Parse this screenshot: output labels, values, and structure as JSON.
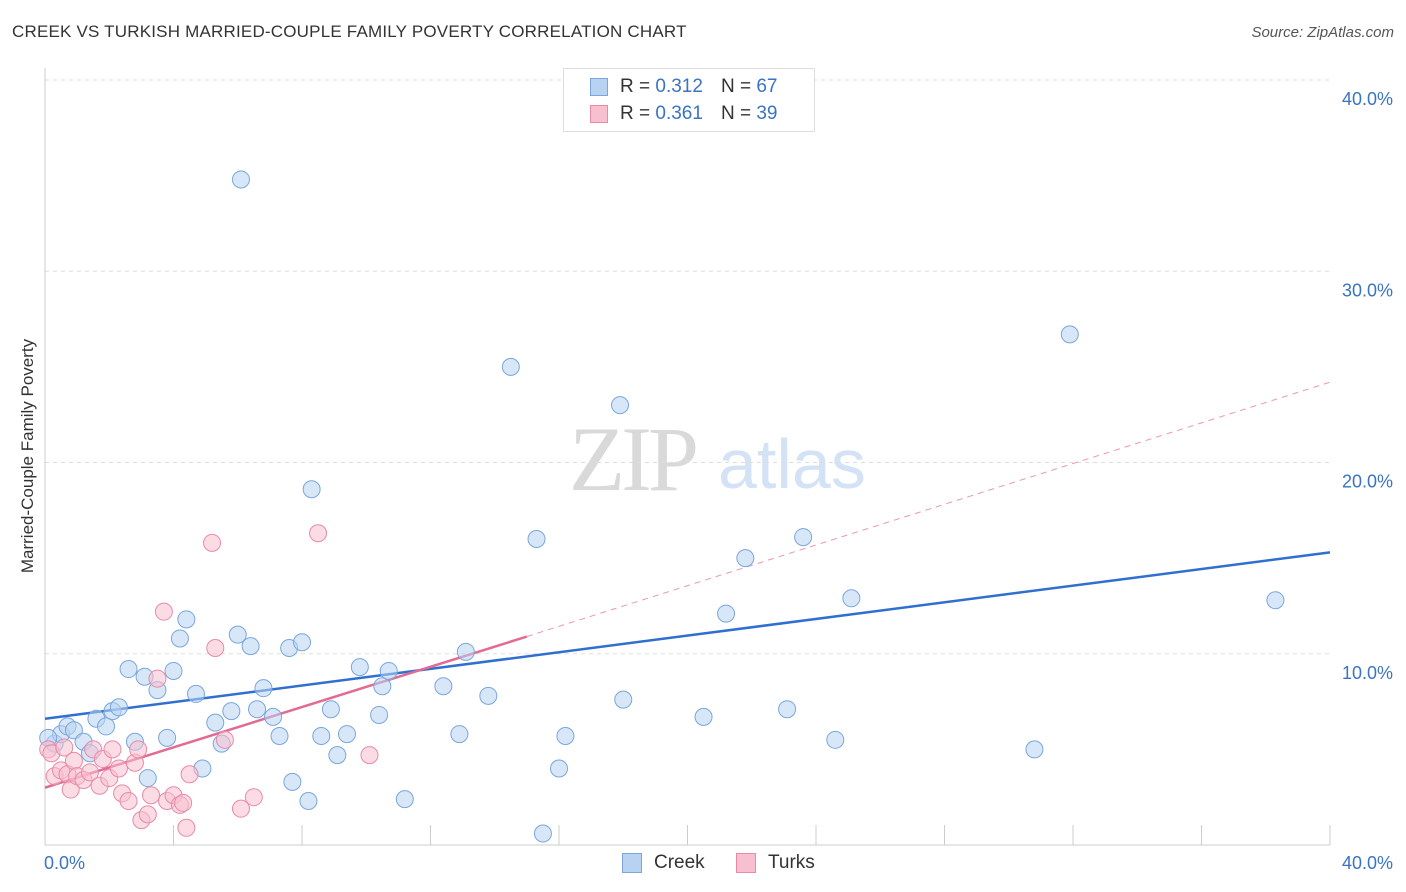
{
  "title": "CREEK VS TURKISH MARRIED-COUPLE FAMILY POVERTY CORRELATION CHART",
  "source": "Source: ZipAtlas.com",
  "watermark": {
    "zip": "ZIP",
    "atlas": "atlas"
  },
  "legend_top": {
    "creek": {
      "r_label": "R =",
      "r_value": "0.312",
      "n_label": "N =",
      "n_value": "67"
    },
    "turks": {
      "r_label": "R =",
      "r_value": "0.361",
      "n_label": "N =",
      "n_value": "39"
    }
  },
  "legend_bottom": {
    "creek": "Creek",
    "turks": "Turks"
  },
  "colors": {
    "creek_fill": "#b8d3f2",
    "creek_stroke": "#7aa6dc",
    "creek_line": "#2f6fcf",
    "turks_fill": "#f7bfd0",
    "turks_stroke": "#e88aa8",
    "turks_line": "#e26a93",
    "grid": "#dddddd",
    "axis_text": "#3a73c4"
  },
  "chart_data": {
    "type": "scatter",
    "title": "CREEK VS TURKISH MARRIED-COUPLE FAMILY POVERTY CORRELATION CHART",
    "xlabel": "",
    "ylabel": "Married-Couple Family Poverty",
    "xlim": [
      0,
      40
    ],
    "ylim": [
      0,
      40
    ],
    "x_tick_labels": {
      "min": "0.0%",
      "max": "40.0%"
    },
    "y_tick_labels": [
      "10.0%",
      "20.0%",
      "30.0%",
      "40.0%"
    ],
    "y_tick_values": [
      10,
      20,
      30,
      40
    ],
    "series": [
      {
        "name": "Creek",
        "points": [
          [
            0.3,
            5.3
          ],
          [
            0.5,
            5.8
          ],
          [
            0.7,
            6.2
          ],
          [
            0.9,
            6.0
          ],
          [
            1.2,
            5.4
          ],
          [
            1.4,
            4.8
          ],
          [
            1.6,
            6.6
          ],
          [
            1.9,
            6.2
          ],
          [
            2.1,
            7.0
          ],
          [
            2.3,
            7.2
          ],
          [
            2.6,
            9.2
          ],
          [
            2.8,
            5.4
          ],
          [
            3.1,
            8.8
          ],
          [
            3.2,
            3.5
          ],
          [
            3.5,
            8.1
          ],
          [
            3.8,
            5.6
          ],
          [
            4.0,
            9.1
          ],
          [
            4.2,
            10.8
          ],
          [
            4.4,
            11.8
          ],
          [
            4.7,
            7.9
          ],
          [
            4.9,
            4.0
          ],
          [
            5.3,
            6.4
          ],
          [
            5.5,
            5.3
          ],
          [
            5.8,
            7.0
          ],
          [
            6.0,
            11.0
          ],
          [
            6.1,
            34.8
          ],
          [
            6.4,
            10.4
          ],
          [
            6.6,
            7.1
          ],
          [
            6.8,
            8.2
          ],
          [
            7.1,
            6.7
          ],
          [
            7.3,
            5.7
          ],
          [
            7.6,
            10.3
          ],
          [
            7.7,
            3.3
          ],
          [
            8.0,
            10.6
          ],
          [
            8.2,
            2.3
          ],
          [
            8.3,
            18.6
          ],
          [
            8.6,
            5.7
          ],
          [
            8.9,
            7.1
          ],
          [
            9.1,
            4.7
          ],
          [
            9.4,
            5.8
          ],
          [
            9.8,
            9.3
          ],
          [
            10.4,
            6.8
          ],
          [
            10.5,
            8.3
          ],
          [
            10.7,
            9.1
          ],
          [
            11.2,
            2.4
          ],
          [
            12.4,
            8.3
          ],
          [
            12.9,
            5.8
          ],
          [
            13.1,
            10.1
          ],
          [
            13.8,
            7.8
          ],
          [
            14.5,
            25.0
          ],
          [
            15.3,
            16.0
          ],
          [
            15.5,
            0.6
          ],
          [
            16.0,
            4.0
          ],
          [
            16.2,
            5.7
          ],
          [
            17.9,
            23.0
          ],
          [
            18.0,
            7.6
          ],
          [
            20.5,
            6.7
          ],
          [
            21.2,
            12.1
          ],
          [
            21.8,
            15.0
          ],
          [
            23.1,
            7.1
          ],
          [
            23.6,
            16.1
          ],
          [
            24.6,
            5.5
          ],
          [
            25.1,
            12.9
          ],
          [
            30.8,
            5.0
          ],
          [
            31.9,
            26.7
          ],
          [
            38.3,
            12.8
          ],
          [
            0.1,
            5.6
          ]
        ]
      },
      {
        "name": "Turks",
        "points": [
          [
            0.1,
            5.0
          ],
          [
            0.2,
            4.8
          ],
          [
            0.3,
            3.6
          ],
          [
            0.5,
            3.9
          ],
          [
            0.6,
            5.1
          ],
          [
            0.7,
            3.7
          ],
          [
            0.8,
            2.9
          ],
          [
            0.9,
            4.4
          ],
          [
            1.0,
            3.6
          ],
          [
            1.2,
            3.4
          ],
          [
            1.4,
            3.8
          ],
          [
            1.5,
            5.0
          ],
          [
            1.7,
            3.1
          ],
          [
            1.8,
            4.5
          ],
          [
            2.0,
            3.5
          ],
          [
            2.1,
            5.0
          ],
          [
            2.3,
            4.0
          ],
          [
            2.4,
            2.7
          ],
          [
            2.6,
            2.3
          ],
          [
            2.8,
            4.3
          ],
          [
            2.9,
            5.0
          ],
          [
            3.0,
            1.3
          ],
          [
            3.2,
            1.6
          ],
          [
            3.3,
            2.6
          ],
          [
            3.5,
            8.7
          ],
          [
            3.7,
            12.2
          ],
          [
            3.8,
            2.3
          ],
          [
            4.0,
            2.6
          ],
          [
            4.2,
            2.1
          ],
          [
            4.3,
            2.2
          ],
          [
            4.4,
            0.9
          ],
          [
            4.5,
            3.7
          ],
          [
            5.2,
            15.8
          ],
          [
            5.3,
            10.3
          ],
          [
            5.6,
            5.5
          ],
          [
            6.1,
            1.9
          ],
          [
            6.5,
            2.5
          ],
          [
            8.5,
            16.3
          ],
          [
            10.1,
            4.7
          ]
        ]
      }
    ],
    "trend_lines": [
      {
        "name": "Creek",
        "x": [
          0,
          40
        ],
        "y": [
          6.6,
          15.3
        ]
      },
      {
        "name": "Turks",
        "x": [
          0,
          15
        ],
        "y": [
          3.0,
          10.9
        ],
        "dashed_extension": {
          "x": [
            15,
            40
          ],
          "y": [
            10.9,
            24.2
          ]
        }
      }
    ]
  }
}
